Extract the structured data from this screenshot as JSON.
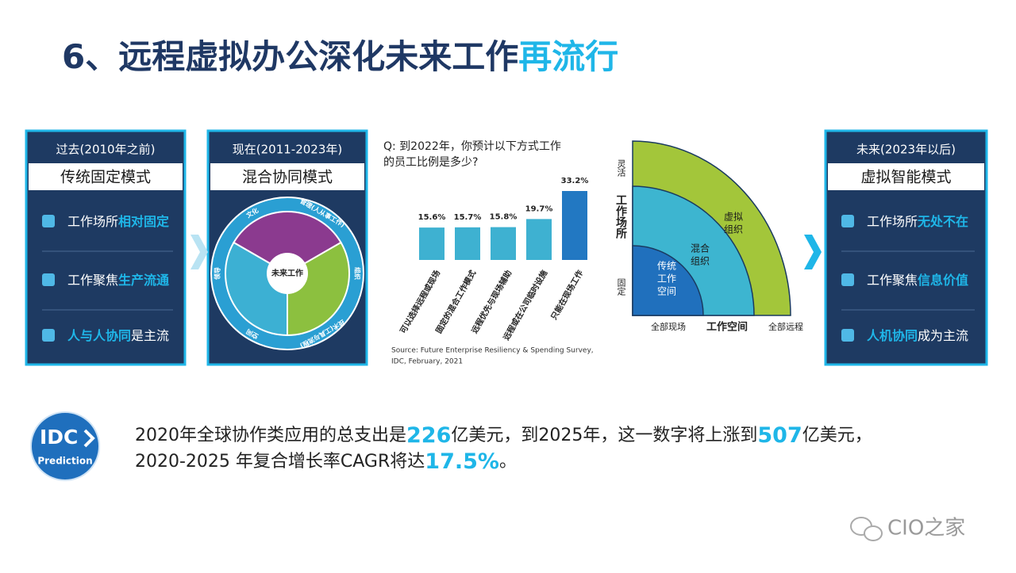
{
  "title": {
    "main": "6、远程虚拟办公深化未来工作",
    "highlight": "再流行"
  },
  "panels": [
    {
      "period": "过去(2010年之前)",
      "model": "传统固定模式",
      "items": [
        [
          {
            "text": "工作场所"
          },
          {
            "text": "相对固定",
            "highlight": true
          }
        ],
        [
          {
            "text": "工作聚焦"
          },
          {
            "text": "生产流通",
            "highlight": true
          }
        ],
        [
          {
            "text": "人与人协同",
            "highlight": true
          },
          {
            "text": "是主流"
          }
        ]
      ]
    },
    {
      "period": "现在(2011-2023年)",
      "model": "混合协同模式",
      "diagram": {
        "center": "未来工作",
        "segments": [
          "文化",
          "管理(人从事工作)",
          "组织",
          "技术(工具与流程)",
          "空间",
          "领导"
        ]
      }
    },
    {
      "period": "未来(2023年以后)",
      "model": "虚拟智能模式",
      "items": [
        [
          {
            "text": "工作场所"
          },
          {
            "text": "无处不在",
            "highlight": true
          }
        ],
        [
          {
            "text": "工作聚焦"
          },
          {
            "text": "信息价值",
            "highlight": true
          }
        ],
        [
          {
            "text": "人机协同",
            "highlight": true
          },
          {
            "text": "成为主流"
          }
        ]
      ]
    }
  ],
  "chart_data": {
    "type": "bar",
    "title": [
      "Q:  到2022年，你预计以下方式工作",
      "的员工比例是多少?"
    ],
    "categories": [
      "可以选择远程或现场",
      "固定的混合工作模式",
      "远程优先与现场辅助",
      "远程或在公司临时设施",
      "只能在现场工作"
    ],
    "values": [
      15.6,
      15.7,
      15.8,
      19.7,
      33.2
    ],
    "value_labels": [
      "15.6%",
      "15.7%",
      "15.8%",
      "19.7%",
      "33.2%"
    ],
    "colors": [
      "#3eb1d1",
      "#3eb1d1",
      "#3eb1d1",
      "#3eb1d1",
      "#2278c2"
    ],
    "source": [
      "Source: Future Enterprise Resiliency & Spending Survey,",
      "IDC, February, 2021"
    ]
  },
  "workspace_diagram": {
    "y_top": "灵活",
    "y_label": "工作场所",
    "y_bottom": "固定",
    "x_left": "全部现场",
    "x_label": "工作空间",
    "x_right": "全部远程",
    "rings": [
      [
        "传统",
        "工作",
        "空间"
      ],
      [
        "混合",
        "组织"
      ],
      [
        "虚拟",
        "组织"
      ]
    ]
  },
  "idc": {
    "brand": "IDC",
    "sub": "Prediction"
  },
  "statement": [
    [
      {
        "text": "2020年全球协作类应用的总支出是"
      },
      {
        "text": "226",
        "highlight": true
      },
      {
        "text": "亿美元，到2025年，这一数字将上涨到"
      },
      {
        "text": "507",
        "highlight": true
      },
      {
        "text": "亿美元，"
      }
    ],
    [
      {
        "text": "2020-2025 年复合增长率CAGR将达"
      },
      {
        "text": "17.5%",
        "highlight": true
      },
      {
        "text": "。"
      }
    ]
  ],
  "watermark": "CIO之家"
}
